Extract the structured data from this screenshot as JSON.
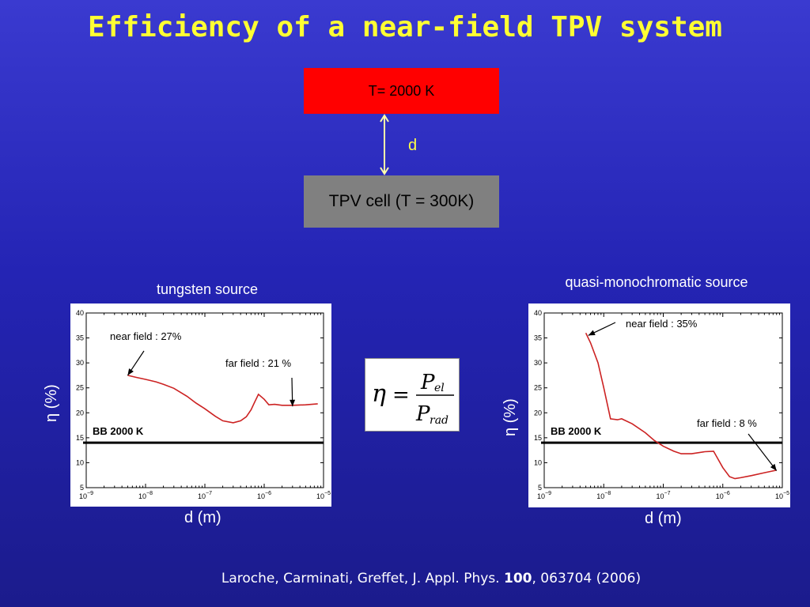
{
  "title": "Efficiency of a near-field TPV system",
  "schematic": {
    "source_label": "T= 2000 K",
    "gap_label": "d",
    "cell_label": "TPV cell (T = 300K)"
  },
  "formula": {
    "symbol": "η",
    "equals": "=",
    "numerator": "P",
    "numerator_sub": "el",
    "denominator": "P",
    "denominator_sub": "rad"
  },
  "citation": {
    "authors": "Laroche, Carminati, Greffet, J. Appl. Phys. ",
    "volume": "100",
    "rest": ", 063704 (2006)"
  },
  "colors": {
    "accent": "#ffff33",
    "curve": "#cc2222",
    "baseline": "#000000"
  },
  "chart_data": [
    {
      "type": "line",
      "title": "tungsten source",
      "xlabel": "d (m)",
      "ylabel": "η (%)",
      "xscale": "log",
      "xlim": [
        1e-09,
        1e-05
      ],
      "ylim": [
        5,
        40
      ],
      "ytick_values": [
        5,
        10,
        15,
        20,
        25,
        30,
        35,
        40
      ],
      "ytick_labels": [
        "5",
        "10",
        "15",
        "20",
        "25",
        "30",
        "35",
        "40"
      ],
      "xtick_values": [
        1e-09,
        1e-08,
        1e-07,
        1e-06,
        1e-05
      ],
      "xtick_bases": [
        "10",
        "10",
        "10",
        "10",
        "10"
      ],
      "xtick_exps": [
        "−9",
        "−8",
        "−7",
        "−6",
        "−5"
      ],
      "series": [
        {
          "x": [
            5e-09,
            7e-09,
            1e-08,
            1.5e-08,
            2e-08,
            3e-08,
            5e-08,
            7e-08,
            1e-07,
            1.5e-07,
            2e-07,
            3e-07,
            4e-07,
            5e-07,
            6e-07,
            7e-07,
            8e-07,
            1e-06,
            1.2e-06,
            1.5e-06,
            2e-06,
            3e-06,
            5e-06,
            8e-06
          ],
          "y": [
            27.5,
            27.1,
            26.7,
            26.2,
            25.7,
            24.9,
            23.3,
            22.0,
            20.8,
            19.3,
            18.4,
            18.0,
            18.4,
            19.2,
            20.6,
            22.3,
            23.7,
            22.7,
            21.6,
            21.7,
            21.5,
            21.5,
            21.6,
            21.8
          ]
        }
      ],
      "baseline": {
        "y": 14,
        "label": "BB 2000 K"
      },
      "annotations": [
        {
          "text": "near field : 27%",
          "point": [
            5e-09,
            27.5
          ]
        },
        {
          "text": "far field : 21 %",
          "point": [
            3e-06,
            21.3
          ]
        }
      ]
    },
    {
      "type": "line",
      "title": "quasi-monochromatic source",
      "xlabel": "d (m)",
      "ylabel": "η (%)",
      "xscale": "log",
      "xlim": [
        1e-09,
        1e-05
      ],
      "ylim": [
        5,
        40
      ],
      "ytick_values": [
        5,
        10,
        15,
        20,
        25,
        30,
        35,
        40
      ],
      "ytick_labels": [
        "5",
        "10",
        "15",
        "20",
        "25",
        "30",
        "35",
        "40"
      ],
      "xtick_values": [
        1e-09,
        1e-08,
        1e-07,
        1e-06,
        1e-05
      ],
      "xtick_bases": [
        "10",
        "10",
        "10",
        "10",
        "10"
      ],
      "xtick_exps": [
        "−9",
        "−8",
        "−7",
        "−6",
        "−5"
      ],
      "series": [
        {
          "x": [
            5e-09,
            6e-09,
            8e-09,
            1e-08,
            1.3e-08,
            1.7e-08,
            2e-08,
            3e-08,
            5e-08,
            7e-08,
            1e-07,
            1.5e-07,
            2e-07,
            3e-07,
            5e-07,
            7e-07,
            1e-06,
            1.3e-06,
            1.6e-06,
            2e-06,
            3e-06,
            5e-06,
            8e-06
          ],
          "y": [
            36.0,
            34.0,
            30.0,
            25.0,
            18.8,
            18.6,
            18.8,
            17.8,
            16.0,
            14.5,
            13.3,
            12.3,
            11.8,
            11.8,
            12.2,
            12.3,
            9.0,
            7.2,
            6.8,
            7.0,
            7.4,
            8.0,
            8.5
          ]
        }
      ],
      "baseline": {
        "y": 14,
        "label": "BB 2000 K"
      },
      "annotations": [
        {
          "text": "near field : 35%",
          "point": [
            5.5e-09,
            35.5
          ]
        },
        {
          "text": "far field : 8 %",
          "point": [
            8e-06,
            8.4
          ]
        }
      ]
    }
  ]
}
